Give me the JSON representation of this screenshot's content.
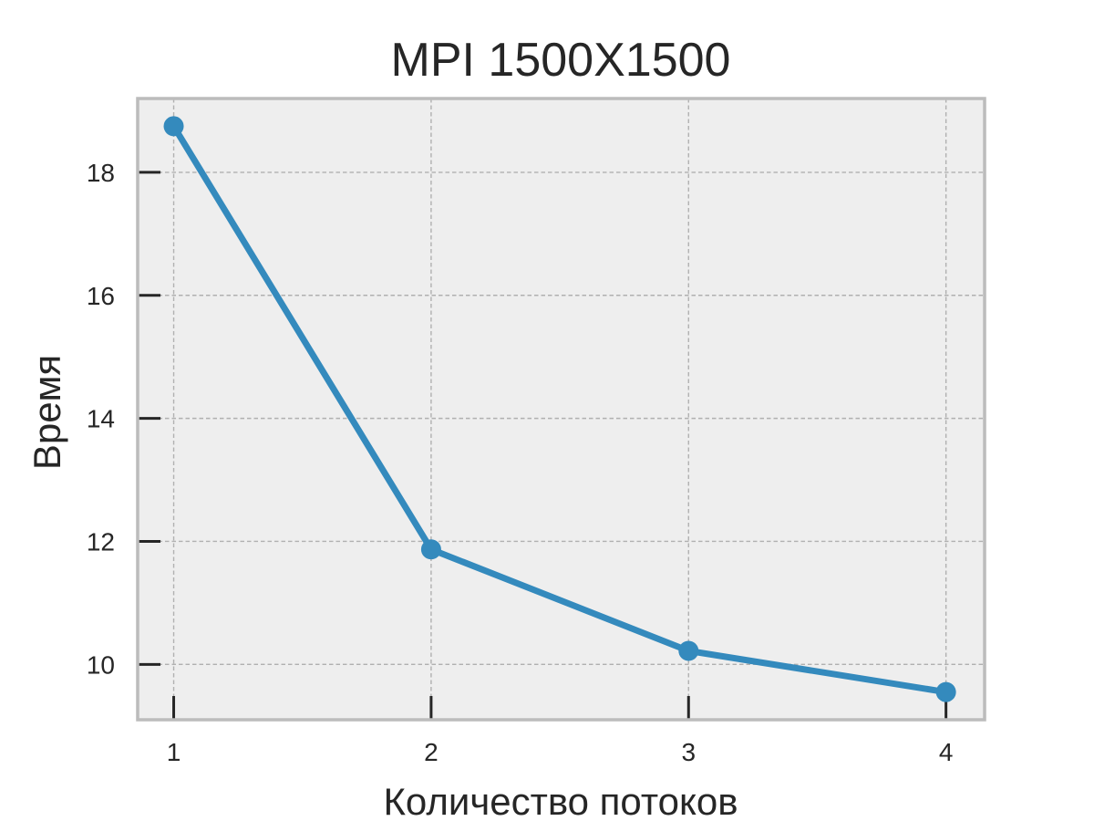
{
  "chart_data": {
    "type": "line",
    "title": "MPI 1500X1500",
    "xlabel": "Количество потоков",
    "ylabel": "Время",
    "x": [
      1,
      2,
      3,
      4
    ],
    "xticks": [
      "1",
      "2",
      "3",
      "4"
    ],
    "yticks": [
      10,
      12,
      14,
      16,
      18
    ],
    "xlim": [
      0.86,
      4.15
    ],
    "ylim": [
      9.1,
      19.2
    ],
    "series": [
      {
        "values": [
          18.75,
          11.87,
          10.22,
          9.55
        ],
        "color": "#348abd"
      }
    ],
    "grid": true,
    "colors": {
      "plot_background": "#eeeeee",
      "grid": "#b0b0b0",
      "frame": "#bcbcbc",
      "text": "#262626",
      "tick": "#262626"
    }
  }
}
